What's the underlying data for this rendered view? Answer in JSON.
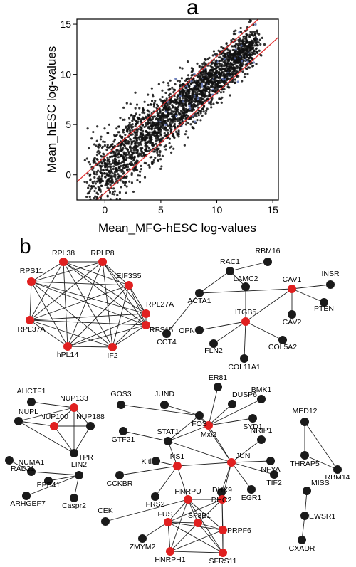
{
  "panel_a_label": "a",
  "panel_b_label": "b",
  "chart_data": {
    "type": "scatter",
    "xlabel": "Mean_MFG-hESC log-values",
    "ylabel": "Mean_hESC log-values",
    "xlim": [
      -2.5,
      15.5
    ],
    "ylim": [
      -2.5,
      15.5
    ],
    "xticks": [
      0,
      5,
      10,
      15
    ],
    "yticks": [
      0,
      5,
      10,
      15
    ],
    "tick_labels_x": [
      "0",
      "5",
      "10",
      "15"
    ],
    "tick_labels_y": [
      "0",
      "5",
      "10",
      "15"
    ],
    "point_color": "#111111",
    "highlight_color": "#5b6fb0",
    "line_color": "#e03030",
    "fold_change_lines": [
      {
        "slope": 1,
        "intercept": 1.8
      },
      {
        "slope": 1,
        "intercept": -1.8
      }
    ],
    "point_cloud": {
      "x_range": [
        -1.5,
        13.5
      ],
      "center_slope": 0.95,
      "spread": 1.3
    }
  },
  "network": {
    "node_colors": {
      "hub": "#e02020",
      "normal": "#1a1a1a"
    },
    "nodes": [
      {
        "id": "RPL38",
        "hub": true
      },
      {
        "id": "RPLP8",
        "hub": true
      },
      {
        "id": "EIF3S5",
        "hub": true
      },
      {
        "id": "RPL27A",
        "hub": true
      },
      {
        "id": "RPS15",
        "hub": true
      },
      {
        "id": "IF2",
        "hub": true
      },
      {
        "id": "hPL14",
        "hub": true
      },
      {
        "id": "RPL37A",
        "hub": true
      },
      {
        "id": "RPS11",
        "hub": true
      },
      {
        "id": "CCT4",
        "hub": false
      },
      {
        "id": "ACTA1",
        "hub": false
      },
      {
        "id": "RAC1",
        "hub": false
      },
      {
        "id": "RBM16",
        "hub": false
      },
      {
        "id": "LAMC2",
        "hub": false
      },
      {
        "id": "CAV1",
        "hub": true
      },
      {
        "id": "INSR",
        "hub": false
      },
      {
        "id": "PTEN",
        "hub": false
      },
      {
        "id": "CAV2",
        "hub": false
      },
      {
        "id": "ITGB5",
        "hub": true
      },
      {
        "id": "OPN",
        "hub": false
      },
      {
        "id": "FLN2",
        "hub": false
      },
      {
        "id": "COL11A1",
        "hub": false
      },
      {
        "id": "COL5A2",
        "hub": false
      },
      {
        "id": "AHCTF1",
        "hub": false
      },
      {
        "id": "NUP133",
        "hub": true
      },
      {
        "id": "NUPL",
        "hub": false
      },
      {
        "id": "NUP100",
        "hub": true
      },
      {
        "id": "NUP188",
        "hub": false
      },
      {
        "id": "TPR",
        "hub": false
      },
      {
        "id": "RAD21",
        "hub": false
      },
      {
        "id": "NUMA1",
        "hub": false
      },
      {
        "id": "LIN2",
        "hub": false
      },
      {
        "id": "EPB41",
        "hub": false
      },
      {
        "id": "ARHGEF7",
        "hub": false
      },
      {
        "id": "Caspr2",
        "hub": false
      },
      {
        "id": "GOS3",
        "hub": false
      },
      {
        "id": "JUND",
        "hub": false
      },
      {
        "id": "FOS",
        "hub": false
      },
      {
        "id": "ER81",
        "hub": false
      },
      {
        "id": "DUSP6",
        "hub": false
      },
      {
        "id": "BMK1",
        "hub": false
      },
      {
        "id": "SYD1",
        "hub": false
      },
      {
        "id": "Mxi2",
        "hub": true
      },
      {
        "id": "GTF21",
        "hub": false
      },
      {
        "id": "STAT1",
        "hub": false
      },
      {
        "id": "NRIP1",
        "hub": false
      },
      {
        "id": "JUN",
        "hub": true
      },
      {
        "id": "NFYA",
        "hub": false
      },
      {
        "id": "TIF2",
        "hub": false
      },
      {
        "id": "EGR1",
        "hub": false
      },
      {
        "id": "DHC2",
        "hub": false
      },
      {
        "id": "Kitl",
        "hub": false
      },
      {
        "id": "NS1",
        "hub": true
      },
      {
        "id": "CCKBR",
        "hub": false
      },
      {
        "id": "HNRPU",
        "hub": true
      },
      {
        "id": "DHX9",
        "hub": true
      },
      {
        "id": "FRS2",
        "hub": false
      },
      {
        "id": "CEK",
        "hub": false
      },
      {
        "id": "FUS",
        "hub": true
      },
      {
        "id": "SF3B1",
        "hub": true
      },
      {
        "id": "PRPF6",
        "hub": true
      },
      {
        "id": "ZMYM2",
        "hub": false
      },
      {
        "id": "HNRPH1",
        "hub": true
      },
      {
        "id": "SFRS11",
        "hub": true
      },
      {
        "id": "MED12",
        "hub": false
      },
      {
        "id": "THRAP5",
        "hub": false
      },
      {
        "id": "RBM14",
        "hub": false
      },
      {
        "id": "MISS",
        "hub": false
      },
      {
        "id": "EWSR1",
        "hub": false
      },
      {
        "id": "CXADR",
        "hub": false
      }
    ],
    "edges": [
      [
        "RPS15",
        "CCT4"
      ],
      [
        "CCT4",
        "ACTA1"
      ],
      [
        "ACTA1",
        "RAC1"
      ],
      [
        "ACTA1",
        "CAV1"
      ],
      [
        "RAC1",
        "RBM16"
      ],
      [
        "RAC1",
        "LAMC2"
      ],
      [
        "LAMC2",
        "ITGB5"
      ],
      [
        "CAV1",
        "INSR"
      ],
      [
        "CAV1",
        "PTEN"
      ],
      [
        "CAV1",
        "CAV2"
      ],
      [
        "CAV1",
        "ITGB5"
      ],
      [
        "ITGB5",
        "OPN"
      ],
      [
        "ITGB5",
        "FLN2"
      ],
      [
        "ITGB5",
        "COL11A1"
      ],
      [
        "ITGB5",
        "COL5A2"
      ],
      [
        "AHCTF1",
        "NUP133"
      ],
      [
        "NUPL",
        "NUP133"
      ],
      [
        "NUPL",
        "NUP100"
      ],
      [
        "NUPL",
        "TPR"
      ],
      [
        "NUP133",
        "NUP100"
      ],
      [
        "NUP133",
        "NUP188"
      ],
      [
        "NUP133",
        "TPR"
      ],
      [
        "NUP100",
        "NUP188"
      ],
      [
        "NUP100",
        "TPR"
      ],
      [
        "NUP188",
        "TPR"
      ],
      [
        "NUMA1",
        "LIN2"
      ],
      [
        "EPB41",
        "LIN2"
      ],
      [
        "ARHGEF7",
        "LIN2"
      ],
      [
        "Caspr2",
        "LIN2"
      ],
      [
        "RAD21",
        "NUMA1"
      ],
      [
        "GOS3",
        "FOS"
      ],
      [
        "JUND",
        "FOS"
      ],
      [
        "FOS",
        "Mxi2"
      ],
      [
        "FOS",
        "JUN"
      ],
      [
        "FOS",
        "STAT1"
      ],
      [
        "ER81",
        "Mxi2"
      ],
      [
        "DUSP6",
        "Mxi2"
      ],
      [
        "BMK1",
        "Mxi2"
      ],
      [
        "SYD1",
        "Mxi2"
      ],
      [
        "Mxi2",
        "JUN"
      ],
      [
        "Mxi2",
        "STAT1"
      ],
      [
        "GTF21",
        "STAT1"
      ],
      [
        "STAT1",
        "JUN"
      ],
      [
        "STAT1",
        "NS1"
      ],
      [
        "NRIP1",
        "JUN"
      ],
      [
        "NFYA",
        "JUN"
      ],
      [
        "TIF2",
        "JUN"
      ],
      [
        "EGR1",
        "JUN"
      ],
      [
        "DHC2",
        "JUN"
      ],
      [
        "JUN",
        "DHX9"
      ],
      [
        "JUN",
        "NS1"
      ],
      [
        "Kitl",
        "NS1"
      ],
      [
        "CCKBR",
        "NS1"
      ],
      [
        "NS1",
        "FRS2"
      ],
      [
        "NS1",
        "HNRPU"
      ],
      [
        "CEK",
        "HNRPU"
      ],
      [
        "ZMYM2",
        "FUS"
      ],
      [
        "HNRPU",
        "DHX9"
      ],
      [
        "HNRPU",
        "FUS"
      ],
      [
        "HNRPU",
        "SF3B1"
      ],
      [
        "HNRPU",
        "PRPF6"
      ],
      [
        "HNRPU",
        "HNRPH1"
      ],
      [
        "HNRPU",
        "SFRS11"
      ],
      [
        "DHX9",
        "FUS"
      ],
      [
        "DHX9",
        "SF3B1"
      ],
      [
        "DHX9",
        "PRPF6"
      ],
      [
        "DHX9",
        "SFRS11"
      ],
      [
        "FUS",
        "SF3B1"
      ],
      [
        "FUS",
        "PRPF6"
      ],
      [
        "FUS",
        "HNRPH1"
      ],
      [
        "FUS",
        "SFRS11"
      ],
      [
        "SF3B1",
        "PRPF6"
      ],
      [
        "SF3B1",
        "HNRPH1"
      ],
      [
        "SF3B1",
        "SFRS11"
      ],
      [
        "PRPF6",
        "HNRPH1"
      ],
      [
        "PRPF6",
        "SFRS11"
      ],
      [
        "HNRPH1",
        "SFRS11"
      ],
      [
        "MED12",
        "THRAP5"
      ],
      [
        "MED12",
        "RBM14"
      ],
      [
        "THRAP5",
        "RBM14"
      ],
      [
        "MISS",
        "EWSR1"
      ],
      [
        "EWSR1",
        "CXADR"
      ]
    ],
    "clique": [
      "RPL38",
      "RPLP8",
      "EIF3S5",
      "RPL27A",
      "RPS15",
      "IF2",
      "hPL14",
      "RPL37A",
      "RPS11"
    ]
  }
}
